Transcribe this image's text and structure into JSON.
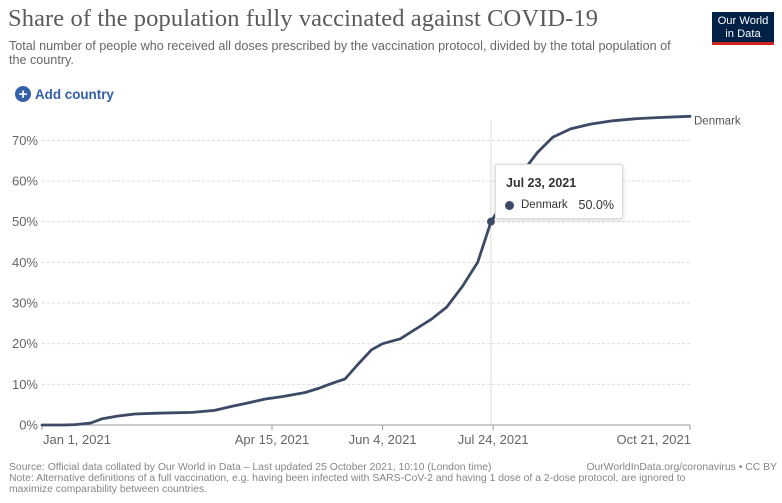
{
  "title": "Share of the population fully vaccinated against COVID-19",
  "subtitle": "Total number of people who received all doses prescribed by the vaccination protocol, divided by the total population of the country.",
  "logo": {
    "line1": "Our World",
    "line2": "in Data"
  },
  "add_country_label": "Add country",
  "tooltip": {
    "date": "Jul 23, 2021",
    "series": "Denmark",
    "value": "50.0%"
  },
  "footer": {
    "source": "Source: Official data collated by Our World in Data – Last updated 25 October 2021, 10:10 (London time)",
    "license": "OurWorldInData.org/coronavirus • CC BY",
    "note": "Note: Alternative definitions of a full vaccination, e.g. having been infected with SARS-CoV-2 and having 1 dose of a 2-dose protocol, are ignored to maximize comparability between countries."
  },
  "colors": {
    "line": "#3c4a66",
    "logo_bg": "#002147",
    "logo_accent": "#ce261e",
    "link": "#3360a9"
  },
  "chart_data": {
    "type": "line",
    "x_start": "2021-01-01",
    "x_end": "2021-10-21",
    "ylim": [
      0,
      75
    ],
    "yticks": [
      "0%",
      "10%",
      "20%",
      "30%",
      "40%",
      "50%",
      "60%",
      "70%"
    ],
    "xticks": [
      {
        "date": "2021-01-01",
        "label": "Jan 1, 2021"
      },
      {
        "date": "2021-04-15",
        "label": "Apr 15, 2021"
      },
      {
        "date": "2021-06-04",
        "label": "Jun 4, 2021"
      },
      {
        "date": "2021-07-24",
        "label": "Jul 24, 2021"
      },
      {
        "date": "2021-10-21",
        "label": "Oct 21, 2021"
      }
    ],
    "grid": true,
    "hover_date": "2021-07-23",
    "series": [
      {
        "name": "Denmark",
        "points": [
          [
            "2021-01-01",
            0.0
          ],
          [
            "2021-01-11",
            0.0
          ],
          [
            "2021-01-16",
            0.1
          ],
          [
            "2021-01-23",
            0.5
          ],
          [
            "2021-01-28",
            1.5
          ],
          [
            "2021-02-04",
            2.2
          ],
          [
            "2021-02-12",
            2.7
          ],
          [
            "2021-02-22",
            2.9
          ],
          [
            "2021-03-10",
            3.1
          ],
          [
            "2021-03-20",
            3.6
          ],
          [
            "2021-03-28",
            4.6
          ],
          [
            "2021-04-04",
            5.4
          ],
          [
            "2021-04-12",
            6.4
          ],
          [
            "2021-04-20",
            7.0
          ],
          [
            "2021-04-30",
            8.0
          ],
          [
            "2021-05-06",
            9.0
          ],
          [
            "2021-05-10",
            9.8
          ],
          [
            "2021-05-14",
            10.6
          ],
          [
            "2021-05-18",
            11.3
          ],
          [
            "2021-05-24",
            15.0
          ],
          [
            "2021-05-30",
            18.5
          ],
          [
            "2021-06-04",
            20.0
          ],
          [
            "2021-06-12",
            21.2
          ],
          [
            "2021-06-19",
            23.6
          ],
          [
            "2021-06-26",
            26.0
          ],
          [
            "2021-07-03",
            29.0
          ],
          [
            "2021-07-10",
            34.0
          ],
          [
            "2021-07-17",
            40.0
          ],
          [
            "2021-07-23",
            50.0
          ],
          [
            "2021-07-30",
            56.0
          ],
          [
            "2021-08-06",
            62.0
          ],
          [
            "2021-08-13",
            67.0
          ],
          [
            "2021-08-20",
            70.8
          ],
          [
            "2021-08-28",
            72.8
          ],
          [
            "2021-09-06",
            74.0
          ],
          [
            "2021-09-16",
            74.8
          ],
          [
            "2021-09-26",
            75.3
          ],
          [
            "2021-10-06",
            75.6
          ],
          [
            "2021-10-21",
            75.9
          ]
        ]
      }
    ]
  }
}
